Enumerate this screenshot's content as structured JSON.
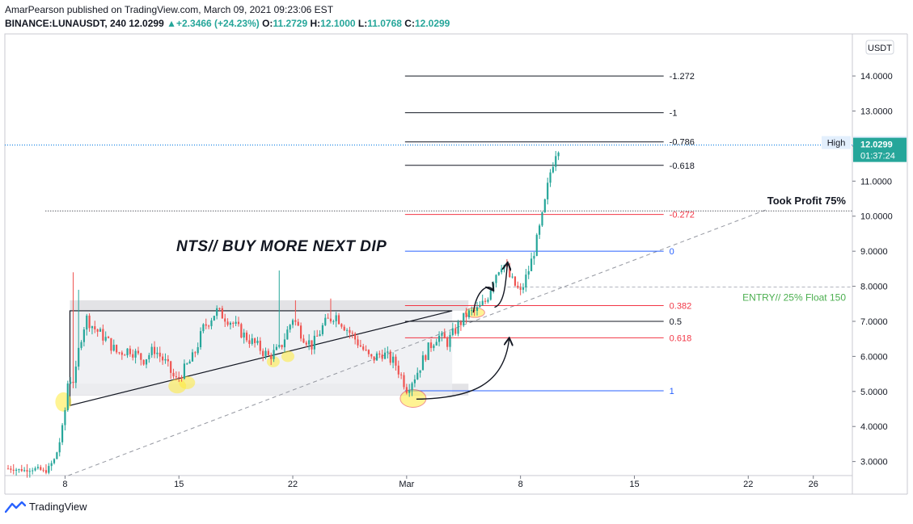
{
  "header": {
    "line1": "AmarPearson published on TradingView.com, March 09, 2021 09:23:06 EST",
    "symbol": "BINANCE:LUNAUSDT, 240",
    "price": "12.0299",
    "change_arrow": "▲",
    "change": "+2.3466 (+24.23%)",
    "o_label": "O:",
    "o": "11.2729",
    "h_label": "H:",
    "h": "12.1000",
    "l_label": "L:",
    "l": "11.0768",
    "c_label": "C:",
    "c": "12.0299"
  },
  "currency_label": "USDT",
  "price_tag": {
    "value": "12.0299",
    "timer": "01:37:24"
  },
  "high_tag": {
    "label": "High",
    "value": "12.1000"
  },
  "footer": {
    "brand": "TradingView"
  },
  "annotations": {
    "nts": "NTS// BUY MORE NEXT DIP",
    "took_profit": "Took Profit 75%",
    "entry": "ENTRY// 25% Float 150"
  },
  "chart_data": {
    "type": "candlestick",
    "symbol": "BINANCE:LUNAUSDT",
    "timeframe": "240",
    "y_ticks": [
      3,
      4,
      5,
      6,
      7,
      8,
      9,
      10,
      11,
      12,
      13,
      14
    ],
    "y_tick_labels": [
      "3.0000",
      "4.0000",
      "5.0000",
      "6.0000",
      "7.0000",
      "8.0000",
      "9.0000",
      "10.0000",
      "11.0000",
      "12.0000",
      "13.0000",
      "14.0000"
    ],
    "x_ticks": [
      {
        "label": "8",
        "day": 8
      },
      {
        "label": "15",
        "day": 15
      },
      {
        "label": "22",
        "day": 22
      },
      {
        "label": "Mar",
        "day": 29
      },
      {
        "label": "8",
        "day": 36
      },
      {
        "label": "15",
        "day": 43
      },
      {
        "label": "22",
        "day": 50
      },
      {
        "label": "26",
        "day": 54
      }
    ],
    "ylim": [
      2.6,
      15.2
    ],
    "xlim": [
      4.3,
      56.4
    ],
    "price_path": [
      [
        4.5,
        2.8
      ],
      [
        5.5,
        2.75
      ],
      [
        6.3,
        2.8
      ],
      [
        6.8,
        2.7
      ],
      [
        7.4,
        3.1
      ],
      [
        7.9,
        4.0
      ],
      [
        8.2,
        5.4
      ],
      [
        8.6,
        5.3
      ],
      [
        8.9,
        6.4
      ],
      [
        9.3,
        7.1
      ],
      [
        9.8,
        6.8
      ],
      [
        10.5,
        6.5
      ],
      [
        11.2,
        6.1
      ],
      [
        12.0,
        6.2
      ],
      [
        12.8,
        5.9
      ],
      [
        13.5,
        6.2
      ],
      [
        14.2,
        5.8
      ],
      [
        14.8,
        5.3
      ],
      [
        15.3,
        5.6
      ],
      [
        15.9,
        6.0
      ],
      [
        16.5,
        6.8
      ],
      [
        17.3,
        7.3
      ],
      [
        18.2,
        7.0
      ],
      [
        19.0,
        6.6
      ],
      [
        19.8,
        6.3
      ],
      [
        20.5,
        6.0
      ],
      [
        21.2,
        6.2
      ],
      [
        22.0,
        7.1
      ],
      [
        22.6,
        6.6
      ],
      [
        23.2,
        6.3
      ],
      [
        23.9,
        6.9
      ],
      [
        24.6,
        7.2
      ],
      [
        25.3,
        6.8
      ],
      [
        26.0,
        6.4
      ],
      [
        26.8,
        5.9
      ],
      [
        27.5,
        6.1
      ],
      [
        28.3,
        5.8
      ],
      [
        29.0,
        5.1
      ],
      [
        29.6,
        5.5
      ],
      [
        30.3,
        6.2
      ],
      [
        30.9,
        6.6
      ],
      [
        31.5,
        6.4
      ],
      [
        32.2,
        6.9
      ],
      [
        32.7,
        7.2
      ],
      [
        33.3,
        7.3
      ],
      [
        33.9,
        7.6
      ],
      [
        34.4,
        8.3
      ],
      [
        34.9,
        8.7
      ],
      [
        35.4,
        8.2
      ],
      [
        36.0,
        7.8
      ],
      [
        36.6,
        8.6
      ],
      [
        37.0,
        9.3
      ],
      [
        37.4,
        10.1
      ],
      [
        37.8,
        11.2
      ],
      [
        38.2,
        11.9
      ],
      [
        38.4,
        12.03
      ]
    ],
    "fib_levels": [
      {
        "label": "-1.272",
        "price": 14.0
      },
      {
        "label": "-1",
        "price": 12.95
      },
      {
        "label": "-0.786",
        "price": 12.12
      },
      {
        "label": "-0.618",
        "price": 11.45
      },
      {
        "label": "-0.272",
        "price": 10.05
      },
      {
        "label": "0",
        "price": 9.0
      },
      {
        "label": "0.382",
        "price": 7.45
      },
      {
        "label": "0.5",
        "price": 7.0
      },
      {
        "label": "0.618",
        "price": 6.53
      },
      {
        "label": "1",
        "price": 5.02
      }
    ],
    "zones": [
      {
        "y1": 7.3,
        "y2": 7.6
      },
      {
        "y1": 4.88,
        "y2": 5.22
      }
    ],
    "take_profit_level": 10.15,
    "entry_level": 7.98,
    "current_price": 12.0299,
    "high": 12.1
  },
  "colors": {
    "up": "#26a69a",
    "down": "#ef5350",
    "fib_black": "#131722",
    "fib_red": "#f23645",
    "fib_blue": "#2962ff",
    "entry": "#4caf50",
    "price_tag": "#26a69a",
    "price_line": "#1e88e5",
    "highlight": "#ffeb3b"
  }
}
